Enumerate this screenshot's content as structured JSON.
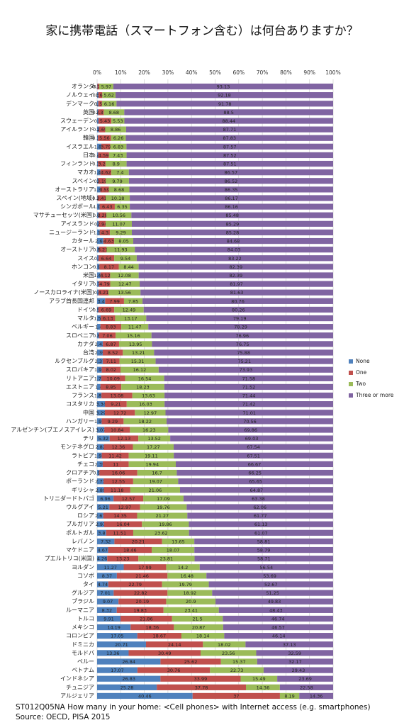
{
  "chart_data": {
    "type": "stacked-bar-horizontal",
    "title": "家に携帯電話（スマートフォン含む）は何台ありますか？",
    "footnote": "ST012Q05NA How many in your home: <Cell phones> with Internet access (e.g. smartphones)",
    "source": "Source: OECD, PISA 2015",
    "categories": [
      "オランダ",
      "ノルウェイ",
      "デンマーク",
      "英国",
      "スウェーデン",
      "アイルランド",
      "韓国",
      "イスラエル",
      "日本",
      "フィンランド",
      "マカオ",
      "スペイン",
      "オーストラリア",
      "スペイン(地域)",
      "シンガポール",
      "マサチューセッツ(米国)",
      "アイスランド",
      "ニュージーランド",
      "カタール",
      "オーストリア",
      "スイス",
      "ホンコン",
      "米国",
      "イタリア",
      "ノースカロライナ(米国)",
      "アラブ首長国連邦",
      "ドイツ",
      "マルタ",
      "ベルギー",
      "スロベニア",
      "カナダ",
      "台湾",
      "ルクセンブルグ",
      "スロバキア",
      "リトアニア",
      "エストニア",
      "フランス",
      "コスタリカ",
      "中国",
      "ハンガリー",
      "アルゼンチン(ブエノスアイレス)",
      "チリ",
      "モンテネグロ",
      "ラトビア",
      "チェコ",
      "クロアチア",
      "ポーランド",
      "ギリシャ",
      "トリニダードトバゴ",
      "ウルグアイ",
      "ロシア",
      "ブルガリア",
      "ポルトガル",
      "レバノン",
      "マケドニア",
      "プエルトリコ(米国)",
      "ヨルダン",
      "コソボ",
      "タイ",
      "グルジア",
      "ブラジル",
      "ルーマニア",
      "トルコ",
      "メキシコ",
      "コロンビア",
      "ドミニカ",
      "モルドバ",
      "ペルー",
      "ベトナム",
      "インドネシア",
      "チュニジア",
      "アルジェリア"
    ],
    "series": [
      {
        "name": "None",
        "color": "#4f81bd",
        "values": [
          0.15,
          0.55,
          0.5,
          0.45,
          0.6,
          0.74,
          0.35,
          1.81,
          0.46,
          0.39,
          1.41,
          0.5,
          1.38,
          0.24,
          1.06,
          0.68,
          0.7,
          1.13,
          2.64,
          0.83,
          0.6,
          0.99,
          1.41,
          0.77,
          0.6,
          3.4,
          0.56,
          1.51,
          1.4,
          0.82,
          2.43,
          2.39,
          2.37,
          1.93,
          1.79,
          1.4,
          1.85,
          3.34,
          3.29,
          1.93,
          3.07,
          5.32,
          2.82,
          1.97,
          2.39,
          0.99,
          2.73,
          2.89,
          6.96,
          5.21,
          2.61,
          2.97,
          3.8,
          7.32,
          4.67,
          4.26,
          11.27,
          8.37,
          4.74,
          7.01,
          9.07,
          8.32,
          9.91,
          14.19,
          17.05,
          20.71,
          13.36,
          26.84,
          17.07,
          26.83,
          25.28,
          40.46
        ]
      },
      {
        "name": "One",
        "color": "#c0504d",
        "values": [
          0.75,
          1.65,
          1.56,
          2.37,
          5.43,
          2.69,
          5.56,
          3.79,
          4.59,
          3.2,
          4.62,
          3.19,
          3.59,
          3.41,
          6.43,
          3.28,
          2.94,
          4.3,
          4.63,
          3.21,
          6.64,
          8.17,
          4.12,
          4.79,
          4.21,
          7.99,
          6.69,
          6.13,
          8.83,
          7.06,
          6.87,
          8.52,
          7.11,
          8.02,
          10.09,
          8.85,
          13.08,
          9.21,
          12.72,
          9.29,
          10.84,
          12.13,
          12.36,
          11.42,
          11,
          16.06,
          12.55,
          11.18,
          12.57,
          12.97,
          14.35,
          16.04,
          11.51,
          20.21,
          18.46,
          13.23,
          17.99,
          21.46,
          22.79,
          22.82,
          20.19,
          19.83,
          21.86,
          18.36,
          18.67,
          24.14,
          30.49,
          25.62,
          30.76,
          33.99,
          37.78,
          37
        ]
      },
      {
        "name": "Two",
        "color": "#9bbb59",
        "values": [
          5.97,
          5.62,
          6.16,
          8.68,
          5.53,
          8.86,
          6.26,
          6.83,
          7.43,
          8.9,
          7.4,
          9.79,
          8.68,
          10.18,
          6.35,
          10.56,
          11.07,
          9.29,
          8.05,
          11.93,
          9.54,
          8.44,
          12.08,
          12.47,
          13.56,
          7.85,
          12.49,
          13.17,
          11.47,
          15.16,
          13.95,
          13.21,
          15.31,
          16.12,
          16.54,
          18.23,
          13.63,
          16.03,
          12.97,
          18.22,
          16.23,
          13.52,
          17.27,
          19.11,
          19.94,
          16.7,
          19.07,
          21.06,
          17.09,
          19.76,
          21.27,
          19.86,
          23.62,
          13.65,
          18.07,
          23.81,
          14.2,
          16.48,
          19.79,
          18.92,
          20.9,
          23.41,
          21.5,
          20.87,
          18.14,
          18.02,
          23.56,
          15.37,
          22.73,
          15.49,
          14.36,
          8.19
        ]
      },
      {
        "name": "Three or more",
        "color": "#8064a2",
        "values": [
          93.13,
          92.18,
          91.78,
          88.5,
          88.44,
          87.71,
          87.83,
          87.57,
          87.52,
          87.51,
          86.57,
          86.52,
          86.35,
          86.17,
          86.16,
          85.48,
          85.29,
          85.28,
          84.68,
          84.03,
          83.22,
          82.39,
          82.39,
          81.97,
          81.63,
          80.76,
          80.26,
          79.19,
          78.29,
          76.96,
          76.75,
          75.88,
          75.21,
          73.93,
          71.58,
          71.52,
          71.44,
          71.42,
          71.01,
          70.56,
          69.86,
          69.03,
          67.54,
          67.51,
          66.67,
          66.25,
          65.65,
          64.87,
          63.38,
          62.06,
          61.77,
          61.13,
          61.07,
          58.81,
          58.79,
          58.71,
          56.54,
          53.69,
          52.67,
          51.25,
          49.83,
          48.43,
          46.74,
          46.57,
          46.14,
          37.13,
          32.59,
          32.17,
          29.43,
          23.69,
          22.58,
          14.36
        ]
      }
    ],
    "xlim": [
      0,
      100
    ],
    "xticks": [
      {
        "value": 0,
        "label": "0%"
      },
      {
        "value": 10,
        "label": "10%"
      },
      {
        "value": 20,
        "label": "20%"
      },
      {
        "value": 30,
        "label": "30%"
      },
      {
        "value": 40,
        "label": "40%"
      },
      {
        "value": 50,
        "label": "50%"
      },
      {
        "value": 60,
        "label": "60%"
      },
      {
        "value": 70,
        "label": "70%"
      },
      {
        "value": 80,
        "label": "80%"
      },
      {
        "value": 90,
        "label": "90%"
      },
      {
        "value": 100,
        "label": "100%"
      }
    ],
    "grid": true,
    "legend": "right"
  }
}
